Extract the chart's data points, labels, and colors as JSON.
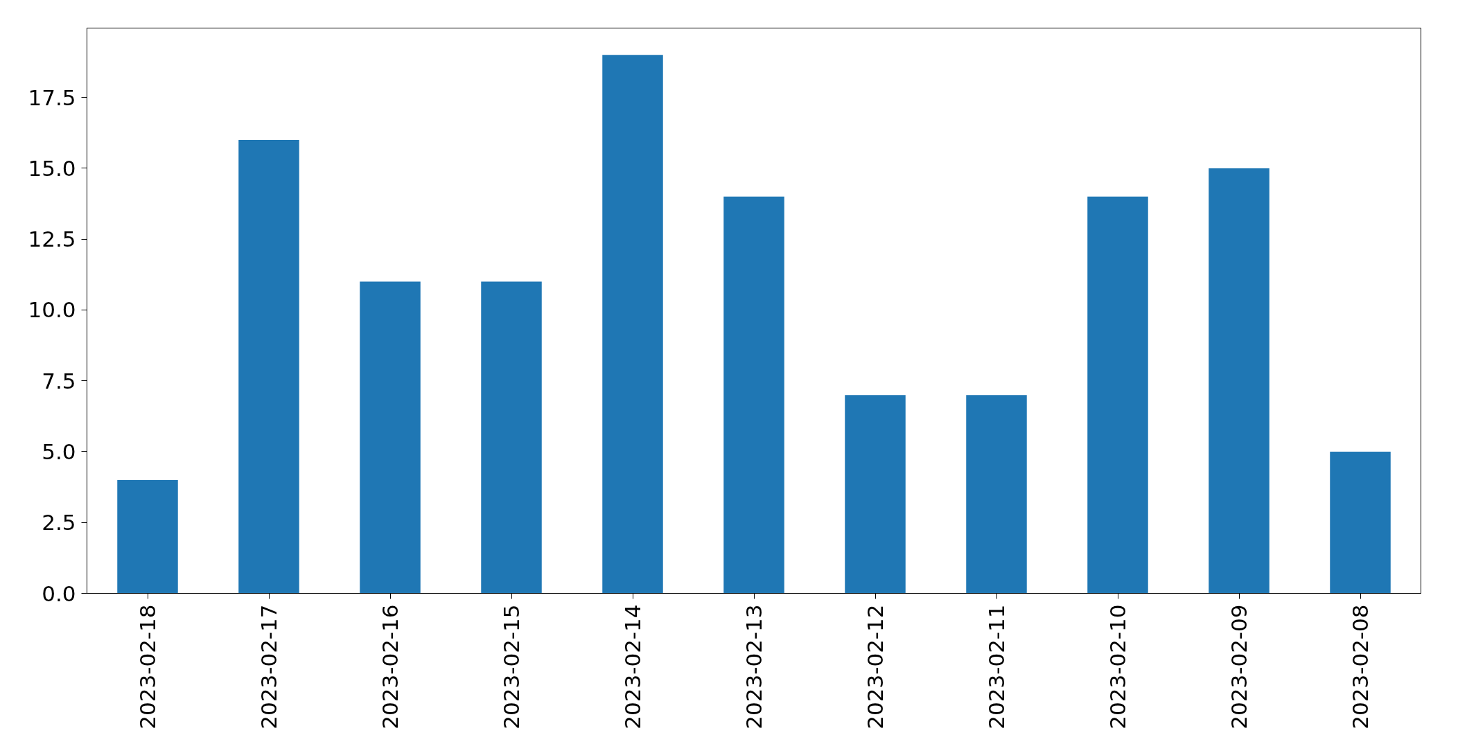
{
  "chart_data": {
    "type": "bar",
    "categories": [
      "2023-02-18",
      "2023-02-17",
      "2023-02-16",
      "2023-02-15",
      "2023-02-14",
      "2023-02-13",
      "2023-02-12",
      "2023-02-11",
      "2023-02-10",
      "2023-02-09",
      "2023-02-08"
    ],
    "values": [
      4,
      16,
      11,
      11,
      19,
      14,
      7,
      7,
      14,
      15,
      5
    ],
    "color": "#1f77b4",
    "ylim": [
      0,
      19.95
    ],
    "yticks": [
      {
        "value": 0,
        "label": "0.0"
      },
      {
        "value": 2.5,
        "label": "2.5"
      },
      {
        "value": 5,
        "label": "5.0"
      },
      {
        "value": 7.5,
        "label": "7.5"
      },
      {
        "value": 10,
        "label": "10.0"
      },
      {
        "value": 12.5,
        "label": "12.5"
      },
      {
        "value": 15,
        "label": "15.0"
      },
      {
        "value": 17.5,
        "label": "17.5"
      }
    ],
    "grid": false
  }
}
